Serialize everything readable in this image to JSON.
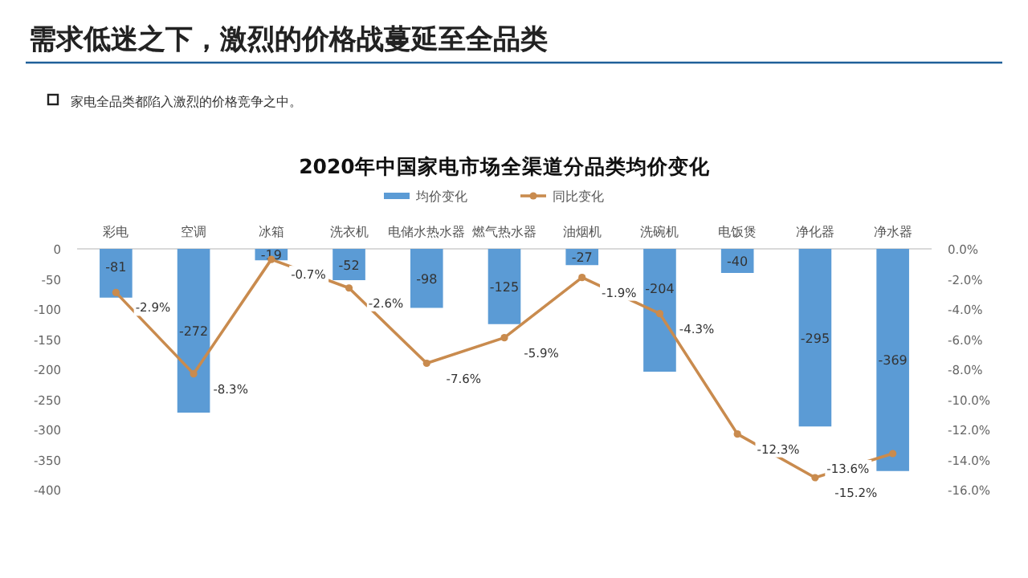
{
  "chart_data": {
    "type": "bar",
    "title": "需求低迷之下，激烈的价格战蔓延至全品类",
    "subtitle": "2020年中国家电市场全渠道分品类均价变化",
    "annotations": [
      "家电全品类都陷入激烈的价格竞争之中。"
    ],
    "categories": [
      "彩电",
      "空调",
      "冰箱",
      "洗衣机",
      "电储水热水器",
      "燃气热水器",
      "油烟机",
      "洗碗机",
      "电饭煲",
      "净化器",
      "净水器"
    ],
    "series": [
      {
        "name": "均价变化",
        "type": "bar",
        "color": "#5b9bd5",
        "values": [
          -81,
          -272,
          -19,
          -52,
          -98,
          -125,
          -27,
          -204,
          -40,
          -295,
          -369
        ],
        "value_labels": [
          "-81",
          "-272",
          "-19",
          "-52",
          "-98",
          "-125",
          "-27",
          "-204",
          "-40",
          "-295",
          "-369"
        ]
      },
      {
        "name": "同比变化",
        "type": "line",
        "axis": "y2",
        "color": "#c98b4e",
        "marker": "circle",
        "values": [
          -2.9,
          -8.3,
          -0.7,
          -2.6,
          -7.6,
          -5.9,
          -1.9,
          -4.3,
          -12.3,
          -15.2,
          -13.6
        ],
        "value_labels": [
          "-2.9%",
          "-8.3%",
          "-0.7%",
          "-2.6%",
          "-7.6%",
          "-5.9%",
          "-1.9%",
          "-4.3%",
          "-12.3%",
          "-15.2%",
          "-13.6%"
        ]
      }
    ],
    "ylim": [
      -400,
      0
    ],
    "yticks": [
      -400,
      -350,
      -300,
      -250,
      -200,
      -150,
      -100,
      -50,
      0
    ],
    "y2lim": [
      -16,
      0
    ],
    "y2ticks": [
      {
        "value": 0,
        "label": "0.0%"
      },
      {
        "value": -2,
        "label": "-2.0%"
      },
      {
        "value": -4,
        "label": "-4.0%"
      },
      {
        "value": -6,
        "label": "-6.0%"
      },
      {
        "value": -8,
        "label": "-8.0%"
      },
      {
        "value": -10,
        "label": "-10.0%"
      },
      {
        "value": -12,
        "label": "-12.0%"
      },
      {
        "value": -14,
        "label": "-14.0%"
      },
      {
        "value": -16,
        "label": "-16.0%"
      }
    ],
    "legend": "top"
  }
}
